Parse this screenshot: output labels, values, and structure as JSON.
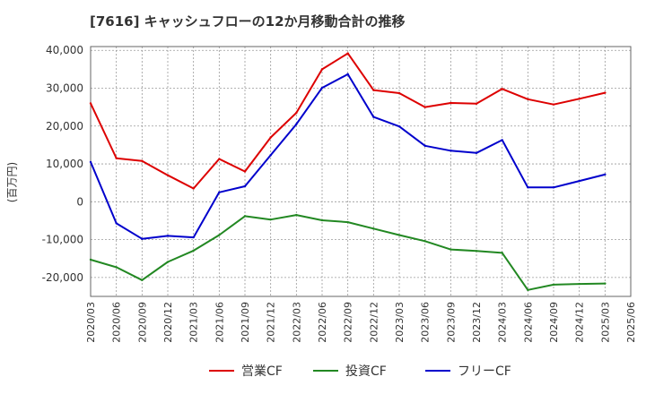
{
  "chart_data": {
    "type": "line",
    "title": "[7616]  キャッシュフローの12か月移動合計の推移",
    "xlabel": "",
    "ylabel": "(百万円)",
    "ylim": [
      -25000,
      41000
    ],
    "yticks": [
      40000,
      30000,
      20000,
      10000,
      0,
      -10000,
      -20000
    ],
    "ytick_labels": [
      "40,000",
      "30,000",
      "20,000",
      "10,000",
      "0",
      "-10,000",
      "-20,000"
    ],
    "categories": [
      "2020/03",
      "2020/06",
      "2020/09",
      "2020/12",
      "2021/03",
      "2021/06",
      "2021/09",
      "2021/12",
      "2022/03",
      "2022/06",
      "2022/09",
      "2022/12",
      "2023/03",
      "2023/06",
      "2023/09",
      "2023/12",
      "2024/03",
      "2024/06",
      "2024/09",
      "2024/12",
      "2025/03",
      "2025/06"
    ],
    "grid": true,
    "legend_position": "bottom",
    "series": [
      {
        "name": "営業CF",
        "color": "#dd0000",
        "values": [
          26000,
          11500,
          10800,
          7000,
          3500,
          11300,
          8000,
          17000,
          23500,
          35000,
          39200,
          29500,
          28700,
          25000,
          26100,
          25900,
          29800,
          27100,
          25700,
          27200,
          28800,
          null
        ]
      },
      {
        "name": "投資CF",
        "color": "#228822",
        "values": [
          -15300,
          -17300,
          -20700,
          -15900,
          -12900,
          -8800,
          -3800,
          -4700,
          -3500,
          -4900,
          -5400,
          -7100,
          -8800,
          -10400,
          -12600,
          -13000,
          -13500,
          -23300,
          -21900,
          -21700,
          -21600,
          null
        ]
      },
      {
        "name": "フリーCF",
        "color": "#0000cc",
        "values": [
          10500,
          -5700,
          -9800,
          -9000,
          -9400,
          2500,
          4100,
          12300,
          20500,
          30100,
          33700,
          22400,
          19900,
          14800,
          13500,
          12900,
          16300,
          3800,
          3800,
          5500,
          7200,
          null
        ]
      }
    ]
  }
}
